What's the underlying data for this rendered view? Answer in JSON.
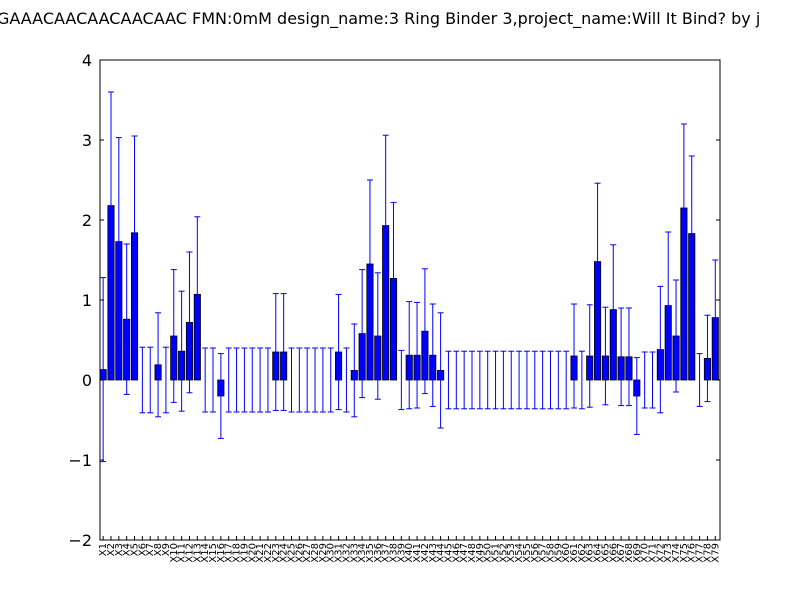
{
  "chart_data": {
    "type": "bar",
    "title": "GAAACAACAACAACAAC  FMN:0mM  design_name:3 Ring Binder 3,project_name:Will It Bind? by j",
    "categories": [
      "X1",
      "X2",
      "X3",
      "X4",
      "X5",
      "X6",
      "X7",
      "X8",
      "X9",
      "X10",
      "X11",
      "X12",
      "X13",
      "X14",
      "X15",
      "X16",
      "X17",
      "X18",
      "X19",
      "X20",
      "X21",
      "X22",
      "X23",
      "X24",
      "X25",
      "X26",
      "X27",
      "X28",
      "X29",
      "X30",
      "X31",
      "X32",
      "X33",
      "X34",
      "X35",
      "X36",
      "X37",
      "X38",
      "X39",
      "X40",
      "X41",
      "X42",
      "X43",
      "X44",
      "X45",
      "X46",
      "X47",
      "X48",
      "X49",
      "X50",
      "X51",
      "X52",
      "X53",
      "X54",
      "X55",
      "X56",
      "X57",
      "X58",
      "X59",
      "X60",
      "X61",
      "X62",
      "X63",
      "X64",
      "X65",
      "X66",
      "X67",
      "X68",
      "X69",
      "X70",
      "X71",
      "X72",
      "X73",
      "X74",
      "X75",
      "X76",
      "X77",
      "X78",
      "X79"
    ],
    "values": [
      0.13,
      2.18,
      1.73,
      0.76,
      1.84,
      0,
      0,
      0.19,
      0,
      0.55,
      0.36,
      0.72,
      1.07,
      0,
      0,
      -0.2,
      0,
      0,
      0,
      0,
      0,
      0,
      0.35,
      0.35,
      0,
      0,
      0,
      0,
      0,
      0,
      0.35,
      0,
      0.12,
      0.58,
      1.45,
      0.55,
      1.93,
      1.27,
      0,
      0.31,
      0.31,
      0.61,
      0.31,
      0.12,
      0,
      0,
      0,
      0,
      0,
      0,
      0,
      0,
      0,
      0,
      0,
      0,
      0,
      0,
      0,
      0,
      0.3,
      0,
      0.3,
      1.48,
      0.3,
      0.88,
      0.29,
      0.29,
      -0.2,
      0,
      0,
      0.38,
      0.93,
      0.55,
      2.15,
      1.83,
      0,
      0.27,
      0.78
    ],
    "errors": [
      1.15,
      1.42,
      1.3,
      0.94,
      1.21,
      0.41,
      0.41,
      0.65,
      0.41,
      0.83,
      0.75,
      0.88,
      0.97,
      0.4,
      0.4,
      0.53,
      0.4,
      0.4,
      0.4,
      0.4,
      0.4,
      0.4,
      0.73,
      0.73,
      0.4,
      0.4,
      0.4,
      0.4,
      0.4,
      0.4,
      0.72,
      0.4,
      0.58,
      0.8,
      1.05,
      0.79,
      1.13,
      0.95,
      0.37,
      0.67,
      0.66,
      0.78,
      0.64,
      0.72,
      0.36,
      0.36,
      0.36,
      0.36,
      0.36,
      0.36,
      0.36,
      0.36,
      0.36,
      0.36,
      0.36,
      0.36,
      0.36,
      0.36,
      0.36,
      0.36,
      0.65,
      0.36,
      0.64,
      0.98,
      0.61,
      0.81,
      0.61,
      0.61,
      0.48,
      0.35,
      0.35,
      0.79,
      0.92,
      0.7,
      1.05,
      0.97,
      0.33,
      0.54,
      0.72
    ],
    "color": "#0000ff",
    "error_color": "#0000ff",
    "ylim": [
      -2,
      4
    ],
    "yticks": [
      {
        "value": -2,
        "label": "−2"
      },
      {
        "value": -1,
        "label": "−1"
      },
      0,
      1,
      2,
      3,
      4
    ]
  }
}
